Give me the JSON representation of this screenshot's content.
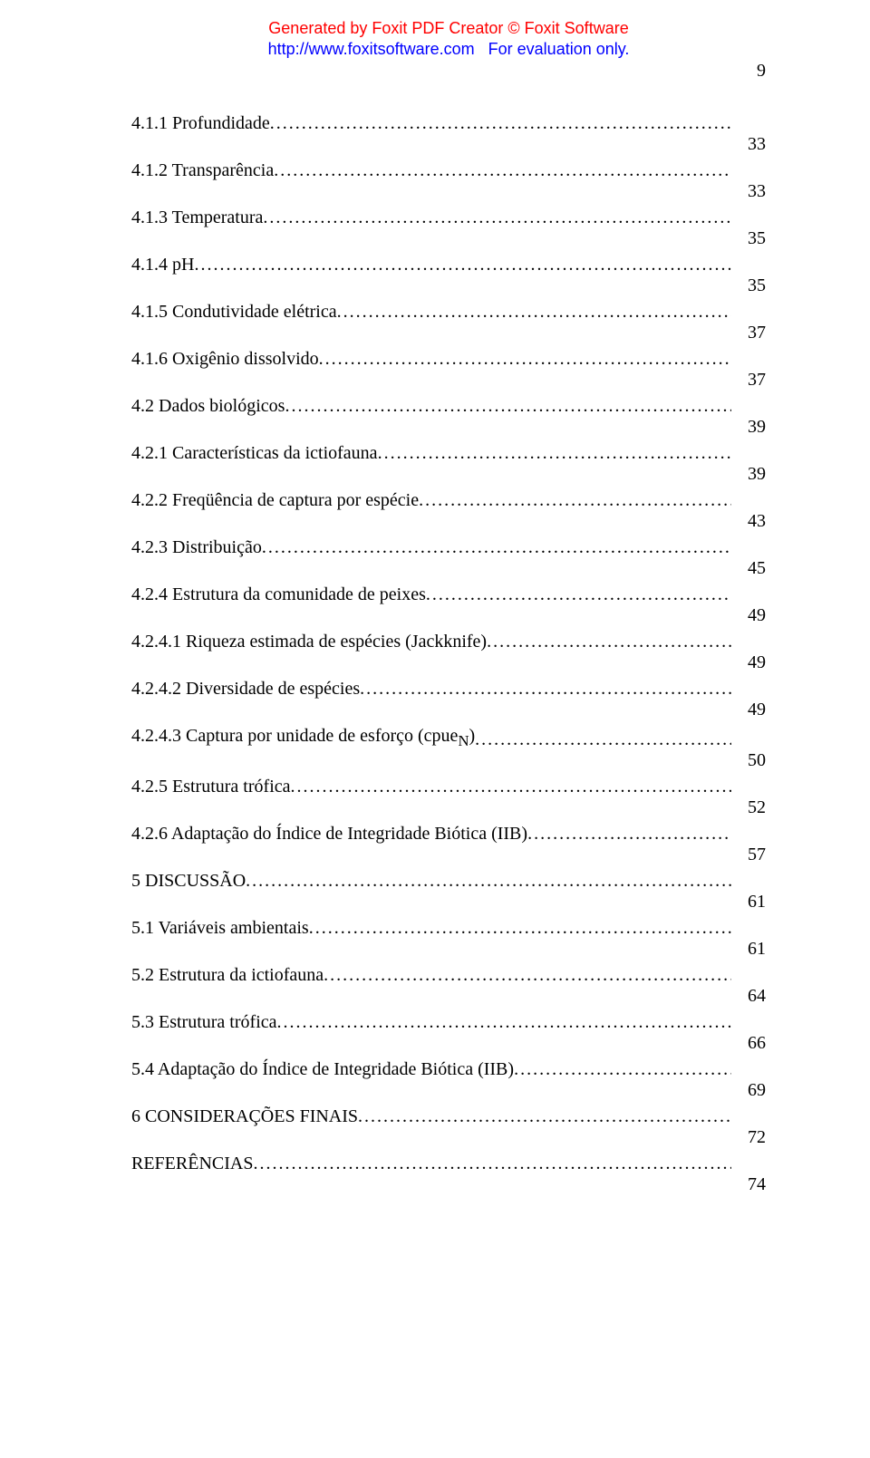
{
  "banner": {
    "line1": "Generated by Foxit PDF Creator © Foxit Software",
    "line2_url": "http://www.foxitsoftware.com",
    "line2_rest": "For evaluation only."
  },
  "page_number": "9",
  "toc": [
    {
      "title": "4.1.1 Profundidade",
      "page": "33"
    },
    {
      "title": "4.1.2 Transparência",
      "page": "33"
    },
    {
      "title": "4.1.3 Temperatura",
      "page": "35"
    },
    {
      "title": "4.1.4 pH",
      "page": "35"
    },
    {
      "title": "4.1.5 Condutividade elétrica",
      "page": "37"
    },
    {
      "title": "4.1.6 Oxigênio dissolvido",
      "page": "37"
    },
    {
      "title": "4.2 Dados biológicos",
      "page": "39"
    },
    {
      "title": "4.2.1 Características da ictiofauna",
      "page": "39"
    },
    {
      "title": "4.2.2 Freqüência de captura por espécie",
      "page": "43"
    },
    {
      "title": "4.2.3 Distribuição",
      "page": "45"
    },
    {
      "title": "4.2.4 Estrutura da comunidade de peixes",
      "page": "49"
    },
    {
      "title": "4.2.4.1 Riqueza estimada de espécies (Jackknife)",
      "page": "49"
    },
    {
      "title": "4.2.4.2 Diversidade de espécies",
      "page": "49"
    },
    {
      "title_html": "4.2.4.3 Captura por unidade de esforço (cpue<sub>N</sub>)",
      "page": "50"
    },
    {
      "title": "4.2.5 Estrutura trófica",
      "page": "52"
    },
    {
      "title": "4.2.6 Adaptação do Índice de Integridade Biótica (IIB)",
      "page": "57"
    },
    {
      "title": "5 DISCUSSÃO",
      "page": "61"
    },
    {
      "title": "5.1 Variáveis ambientais",
      "page": "61"
    },
    {
      "title": "5.2 Estrutura da ictiofauna ",
      "page": "64"
    },
    {
      "title": "5.3 Estrutura trófica",
      "page": "66"
    },
    {
      "title": "5.4 Adaptação do Índice de Integridade Biótica (IIB)",
      "page": "69"
    },
    {
      "title": "6 CONSIDERAÇÕES FINAIS",
      "page": "72"
    },
    {
      "title": "REFERÊNCIAS",
      "page": "74"
    }
  ]
}
